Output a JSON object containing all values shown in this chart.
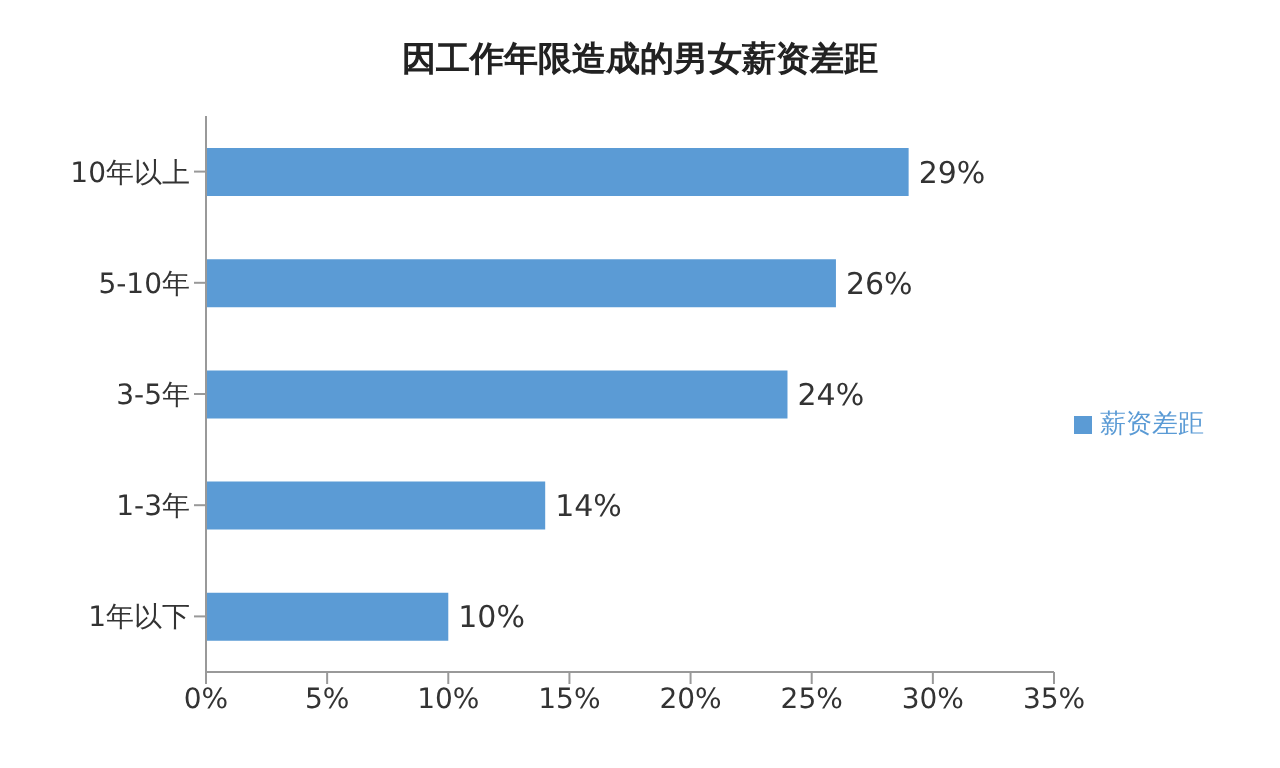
{
  "chart_data": {
    "type": "bar",
    "orientation": "horizontal",
    "title": "因工作年限造成的男女薪资差距",
    "categories": [
      "10年以上",
      "5-10年",
      "3-5年",
      "1-3年",
      "1年以下"
    ],
    "series": [
      {
        "name": "薪资差距",
        "color": "#5b9bd5",
        "values": [
          29,
          26,
          24,
          14,
          10
        ],
        "value_labels": [
          "29%",
          "26%",
          "24%",
          "14%",
          "10%"
        ]
      }
    ],
    "xlim": [
      0,
      35
    ],
    "xticks": [
      {
        "value": 0,
        "label": "0%"
      },
      {
        "value": 5,
        "label": "5%"
      },
      {
        "value": 10,
        "label": "10%"
      },
      {
        "value": 15,
        "label": "15%"
      },
      {
        "value": 20,
        "label": "20%"
      },
      {
        "value": 25,
        "label": "25%"
      },
      {
        "value": 30,
        "label": "30%"
      },
      {
        "value": 35,
        "label": "35%"
      }
    ],
    "grid": false,
    "legend": "right"
  }
}
